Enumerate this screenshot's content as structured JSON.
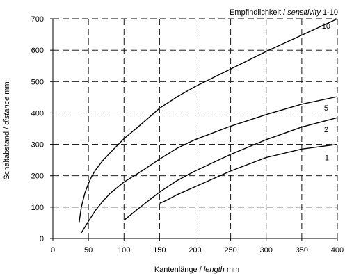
{
  "chart_data": {
    "type": "line",
    "title": "",
    "legend_title": {
      "prefix": "Empfindlichkeit / ",
      "italic": "sensitivity",
      "suffix": " 1-10"
    },
    "xlabel": {
      "prefix": "Kantenlänge / ",
      "italic": "length",
      "suffix": " mm"
    },
    "ylabel": {
      "prefix": "Schaltabstand / ",
      "italic": "distance",
      "suffix": " mm"
    },
    "xlim": [
      0,
      400
    ],
    "ylim": [
      0,
      700
    ],
    "x_ticks": [
      0,
      50,
      100,
      150,
      200,
      250,
      300,
      350,
      400
    ],
    "y_ticks": [
      0,
      100,
      200,
      300,
      400,
      500,
      600,
      700
    ],
    "grid": "dashed",
    "series": [
      {
        "name": "10",
        "x": [
          37,
          40,
          45,
          50,
          55,
          60,
          70,
          80,
          100,
          120,
          150,
          175,
          200,
          250,
          300,
          350,
          400
        ],
        "y": [
          52,
          100,
          145,
          175,
          200,
          218,
          248,
          272,
          318,
          356,
          415,
          452,
          484,
          540,
          596,
          648,
          700
        ]
      },
      {
        "name": "5",
        "x": [
          40,
          50,
          60,
          70,
          80,
          100,
          125,
          150,
          175,
          200,
          250,
          300,
          350,
          400
        ],
        "y": [
          18,
          55,
          90,
          118,
          143,
          180,
          215,
          253,
          288,
          315,
          358,
          395,
          428,
          452
        ]
      },
      {
        "name": "2",
        "x": [
          100,
          120,
          150,
          175,
          200,
          250,
          300,
          350,
          400
        ],
        "y": [
          58,
          95,
          148,
          185,
          215,
          268,
          315,
          355,
          385
        ]
      },
      {
        "name": "1",
        "x": [
          150,
          160,
          175,
          200,
          250,
          300,
          350,
          400
        ],
        "y": [
          112,
          122,
          140,
          165,
          215,
          258,
          285,
          300
        ]
      }
    ]
  }
}
